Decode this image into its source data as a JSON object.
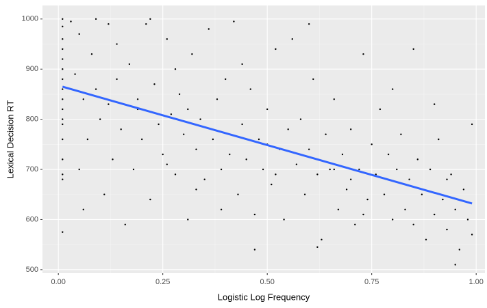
{
  "chart_data": {
    "type": "scatter",
    "x_label": "Logistic Log Frequency",
    "y_label": "Lexical Decision RT",
    "xlim": [
      -0.038,
      1.021
    ],
    "ylim": [
      493,
      1027
    ],
    "xticks": [
      {
        "value": 0,
        "label": "0.00"
      },
      {
        "value": 0.25,
        "label": "0.25"
      },
      {
        "value": 0.5,
        "label": "0.50"
      },
      {
        "value": 0.75,
        "label": "0.75"
      },
      {
        "value": 1,
        "label": "1.00"
      }
    ],
    "yticks": [
      500,
      600,
      700,
      800,
      900,
      1000
    ],
    "grid": true,
    "series": [
      {
        "type": "scatter",
        "color": "#000000",
        "x": [
          0.01,
          0.01,
          0.01,
          0.01,
          0.01,
          0.01,
          0.01,
          0.01,
          0.01,
          0.01,
          0.01,
          0.01,
          0.01,
          0.01,
          0.01,
          0.01,
          0.01,
          0.03,
          0.05,
          0.04,
          0.06,
          0.07,
          0.05,
          0.08,
          0.09,
          0.1,
          0.11,
          0.12,
          0.13,
          0.14,
          0.15,
          0.06,
          0.09,
          0.12,
          0.14,
          0.17,
          0.18,
          0.19,
          0.2,
          0.21,
          0.22,
          0.23,
          0.24,
          0.25,
          0.26,
          0.27,
          0.28,
          0.29,
          0.3,
          0.31,
          0.32,
          0.33,
          0.34,
          0.35,
          0.16,
          0.22,
          0.28,
          0.19,
          0.26,
          0.31,
          0.33,
          0.36,
          0.37,
          0.38,
          0.39,
          0.4,
          0.41,
          0.42,
          0.43,
          0.44,
          0.45,
          0.46,
          0.47,
          0.48,
          0.49,
          0.5,
          0.51,
          0.52,
          0.53,
          0.54,
          0.55,
          0.47,
          0.39,
          0.44,
          0.5,
          0.52,
          0.56,
          0.57,
          0.58,
          0.59,
          0.6,
          0.61,
          0.62,
          0.63,
          0.64,
          0.65,
          0.66,
          0.67,
          0.68,
          0.69,
          0.7,
          0.71,
          0.72,
          0.73,
          0.74,
          0.75,
          0.6,
          0.66,
          0.7,
          0.62,
          0.73,
          0.76,
          0.77,
          0.78,
          0.79,
          0.8,
          0.81,
          0.82,
          0.83,
          0.84,
          0.85,
          0.86,
          0.87,
          0.88,
          0.89,
          0.9,
          0.91,
          0.92,
          0.93,
          0.94,
          0.95,
          0.96,
          0.97,
          0.98,
          0.99,
          0.99,
          0.85,
          0.9,
          0.95,
          0.8,
          0.93
        ],
        "values": [
          1000,
          985,
          960,
          940,
          920,
          900,
          880,
          860,
          840,
          820,
          800,
          790,
          760,
          720,
          690,
          680,
          575,
          995,
          970,
          890,
          840,
          760,
          700,
          930,
          860,
          800,
          650,
          990,
          720,
          880,
          780,
          620,
          1000,
          830,
          950,
          910,
          700,
          820,
          760,
          990,
          640,
          870,
          790,
          730,
          960,
          810,
          690,
          850,
          770,
          600,
          930,
          740,
          800,
          680,
          590,
          1000,
          900,
          840,
          710,
          820,
          660,
          980,
          760,
          840,
          700,
          880,
          730,
          995,
          650,
          790,
          720,
          860,
          610,
          760,
          700,
          820,
          670,
          940,
          740,
          600,
          780,
          540,
          620,
          910,
          750,
          690,
          960,
          710,
          800,
          650,
          740,
          880,
          690,
          560,
          770,
          700,
          840,
          620,
          730,
          660,
          780,
          590,
          700,
          930,
          640,
          750,
          990,
          700,
          680,
          545,
          610,
          690,
          820,
          650,
          730,
          600,
          700,
          770,
          620,
          680,
          590,
          720,
          650,
          560,
          700,
          610,
          760,
          640,
          580,
          690,
          620,
          540,
          660,
          600,
          790,
          570,
          940,
          830,
          510,
          860,
          680
        ]
      },
      {
        "type": "line",
        "color": "#3366ff",
        "x": [
          0.01,
          0.99
        ],
        "values": [
          865,
          632
        ]
      }
    ]
  }
}
